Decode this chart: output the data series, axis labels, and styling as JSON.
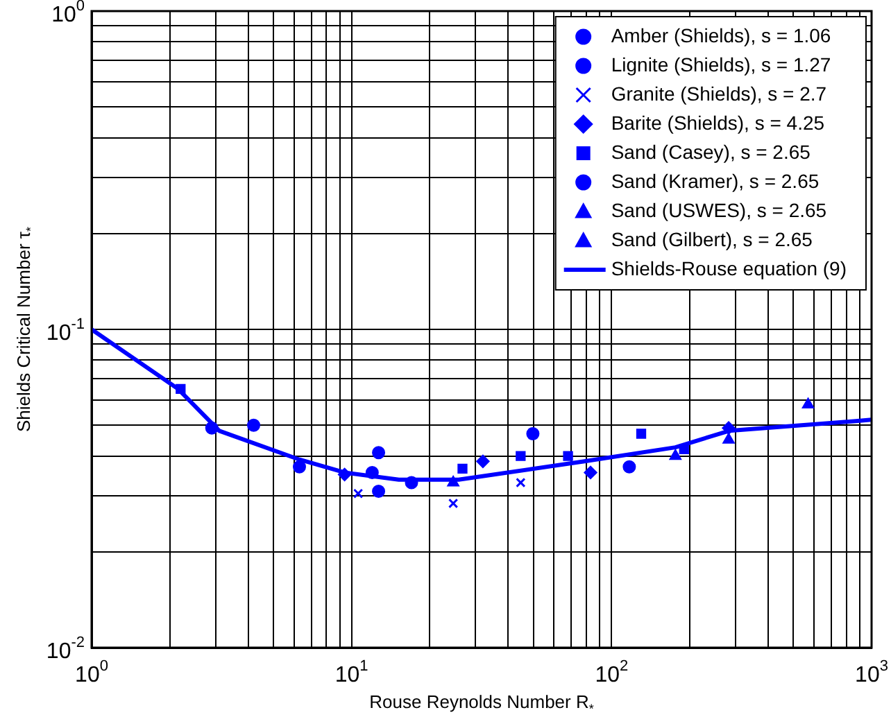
{
  "chart_data": {
    "type": "scatter",
    "xlabel": "Rouse Reynolds Number R$_{*}$",
    "ylabel": "Shields Critical Number τ$_{*}$",
    "log": "xy",
    "grid": true,
    "legend": "top right",
    "xlim": [
      1,
      1000
    ],
    "ylim": [
      0.01,
      1
    ],
    "xticks": [
      {
        "value": 1,
        "label": "10$^{0}$"
      },
      {
        "value": 2,
        "label": null
      },
      {
        "value": 3,
        "label": null
      },
      {
        "value": 4,
        "label": null
      },
      {
        "value": 5,
        "label": null
      },
      {
        "value": 6,
        "label": null
      },
      {
        "value": 7,
        "label": null
      },
      {
        "value": 8,
        "label": null
      },
      {
        "value": 9,
        "label": null
      },
      {
        "value": 10,
        "label": "10$^{1}$"
      },
      {
        "value": 20,
        "label": null
      },
      {
        "value": 30,
        "label": null
      },
      {
        "value": 40,
        "label": null
      },
      {
        "value": 50,
        "label": null
      },
      {
        "value": 60,
        "label": null
      },
      {
        "value": 70,
        "label": null
      },
      {
        "value": 80,
        "label": null
      },
      {
        "value": 90,
        "label": null
      },
      {
        "value": 100,
        "label": "10$^{2}$"
      },
      {
        "value": 200,
        "label": null
      },
      {
        "value": 300,
        "label": null
      },
      {
        "value": 400,
        "label": null
      },
      {
        "value": 500,
        "label": null
      },
      {
        "value": 600,
        "label": null
      },
      {
        "value": 700,
        "label": null
      },
      {
        "value": 800,
        "label": null
      },
      {
        "value": 900,
        "label": null
      },
      {
        "value": 1000,
        "label": "10$^{3}$"
      }
    ],
    "yticks": [
      {
        "value": 0.01,
        "label": "10$^{-2}$"
      },
      {
        "value": 0.02,
        "label": null
      },
      {
        "value": 0.03,
        "label": null
      },
      {
        "value": 0.04,
        "label": null
      },
      {
        "value": 0.05,
        "label": null
      },
      {
        "value": 0.06,
        "label": null
      },
      {
        "value": 0.07,
        "label": null
      },
      {
        "value": 0.08,
        "label": null
      },
      {
        "value": 0.09,
        "label": null
      },
      {
        "value": 0.1,
        "label": "10$^{-1}$"
      },
      {
        "value": 0.2,
        "label": null
      },
      {
        "value": 0.3,
        "label": null
      },
      {
        "value": 0.4,
        "label": null
      },
      {
        "value": 0.5,
        "label": null
      },
      {
        "value": 0.6,
        "label": null
      },
      {
        "value": 0.7,
        "label": null
      },
      {
        "value": 0.8,
        "label": null
      },
      {
        "value": 0.9,
        "label": null
      },
      {
        "value": 1,
        "label": "10$^{0}$"
      }
    ],
    "series": [
      {
        "name": "Amber (Shields), s = 1.06",
        "color": "#0000ff",
        "marker": "circle",
        "x": [
          6.3,
          17
        ],
        "values": [
          0.037,
          0.033
        ]
      },
      {
        "name": "Lignite (Shields), s = 1.27",
        "color": "#0000ff",
        "marker": "circle",
        "x": [
          2.9,
          12.7,
          49.8,
          117
        ],
        "values": [
          0.049,
          0.031,
          0.047,
          0.037
        ]
      },
      {
        "name": "Granite (Shields), s = 2.7",
        "color": "#0000ff",
        "marker": "cross",
        "x": [
          10.6,
          24.6,
          44.7
        ],
        "values": [
          0.0305,
          0.0284,
          0.033
        ]
      },
      {
        "name": "Barite (Shields), s = 4.25",
        "color": "#0000ff",
        "marker": "diamond",
        "x": [
          9.4,
          32,
          83,
          282
        ],
        "values": [
          0.035,
          0.0385,
          0.0355,
          0.049
        ]
      },
      {
        "name": "Sand (Casey), s = 2.65",
        "color": "#0000ff",
        "marker": "square",
        "x": [
          2.2,
          26.7,
          44.7,
          68,
          130,
          190
        ],
        "values": [
          0.065,
          0.0365,
          0.04,
          0.04,
          0.047,
          0.042
        ]
      },
      {
        "name": "Sand (Kramer), s = 2.65",
        "color": "#0000ff",
        "marker": "circle",
        "x": [
          4.2,
          12,
          12.7
        ],
        "values": [
          0.05,
          0.0355,
          0.041
        ]
      },
      {
        "name": "Sand (USWES), s = 2.65",
        "color": "#0000ff",
        "marker": "triangle",
        "x": [
          24.6,
          176,
          282
        ],
        "values": [
          0.033,
          0.04,
          0.045
        ]
      },
      {
        "name": "Sand (Gilbert), s = 2.65",
        "color": "#0000ff",
        "marker": "triangle",
        "x": [
          570
        ],
        "values": [
          0.058
        ]
      },
      {
        "name": "Shields-Rouse equation (9)",
        "type": "line",
        "color": "#0000ff",
        "marker": "none",
        "x": [
          1,
          2.15,
          3.1,
          6.3,
          9.4,
          15.2,
          25.8,
          78.7,
          176,
          283,
          870,
          1000
        ],
        "values": [
          0.1,
          0.065,
          0.048,
          0.039,
          0.0355,
          0.0337,
          0.0337,
          0.0385,
          0.0426,
          0.048,
          0.0515,
          0.052
        ]
      }
    ]
  }
}
